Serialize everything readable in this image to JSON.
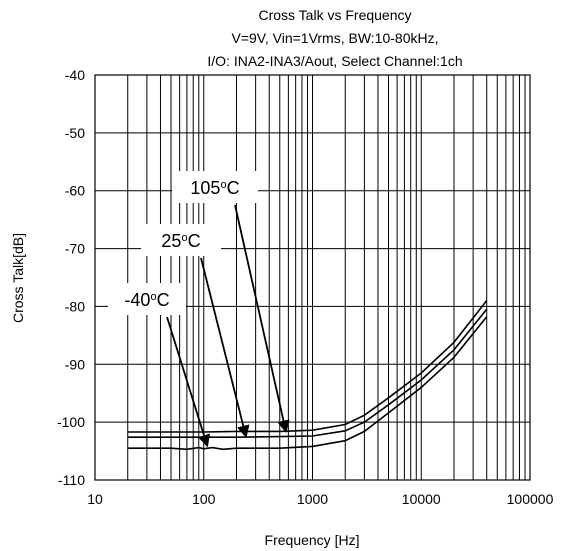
{
  "chart_data": {
    "type": "line",
    "title_lines": [
      "Cross Talk vs Frequency",
      "V=9V, Vin=1Vrms, BW:10-80kHz,",
      "I/O: INA2-INA3/Aout, Select Channel:1ch"
    ],
    "xlabel": "Frequency [Hz]",
    "ylabel": "Cross Talk[dB]",
    "xscale": "log",
    "xlim": [
      10,
      100000
    ],
    "ylim": [
      -110,
      -40
    ],
    "x_ticks": [
      10,
      100,
      1000,
      10000,
      100000
    ],
    "x_tick_labels": [
      "10",
      "100",
      "1000",
      "10000",
      "100000"
    ],
    "y_ticks": [
      -110,
      -100,
      -90,
      -80,
      -70,
      -60,
      -50,
      -40
    ],
    "y_tick_labels": [
      "-110",
      "-100",
      "-90",
      "-80",
      "-70",
      "-60",
      "-50",
      "-40"
    ],
    "grid": true,
    "series": [
      {
        "name": "105°C",
        "x": [
          20,
          50,
          100,
          200,
          500,
          1000,
          2000,
          3000,
          5000,
          10000,
          20000,
          40000
        ],
        "y": [
          -101.7,
          -101.7,
          -101.7,
          -101.6,
          -101.6,
          -101.4,
          -100.4,
          -98.8,
          -95.8,
          -91.5,
          -86.2,
          -79.0
        ]
      },
      {
        "name": "25°C",
        "x": [
          20,
          50,
          100,
          200,
          500,
          1000,
          2000,
          3000,
          5000,
          10000,
          20000,
          40000
        ],
        "y": [
          -102.6,
          -102.6,
          -102.6,
          -102.6,
          -102.5,
          -102.4,
          -101.5,
          -100.0,
          -97.0,
          -92.7,
          -87.5,
          -80.5
        ]
      },
      {
        "name": "-40°C",
        "x": [
          20,
          50,
          70,
          90,
          100,
          120,
          150,
          200,
          500,
          1000,
          2000,
          3000,
          5000,
          10000,
          20000,
          40000
        ],
        "y": [
          -104.5,
          -104.5,
          -104.7,
          -104.4,
          -104.6,
          -104.4,
          -104.7,
          -104.5,
          -104.5,
          -104.2,
          -103.2,
          -101.6,
          -98.4,
          -94.0,
          -88.8,
          -81.8
        ]
      }
    ],
    "annotations": [
      {
        "label": "105",
        "unit": "C",
        "target_x": 570,
        "target_y": -102.0
      },
      {
        "label": "25",
        "unit": "C",
        "target_x": 245,
        "target_y": -102.9
      },
      {
        "label": "-40",
        "unit": "C",
        "target_x": 108,
        "target_y": -104.5
      }
    ]
  }
}
